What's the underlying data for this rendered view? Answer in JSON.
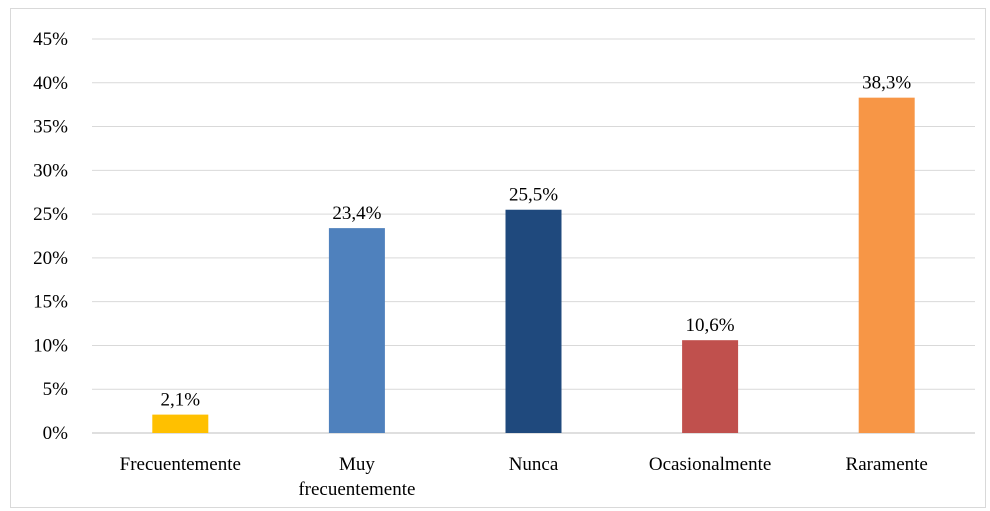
{
  "chart_data": {
    "type": "bar",
    "title": "",
    "xlabel": "",
    "ylabel": "",
    "categories": [
      "Frecuentemente",
      "Muy frecuentemente",
      "Nunca",
      "Ocasionalmente",
      "Raramente"
    ],
    "category_lines": [
      [
        "Frecuentemente"
      ],
      [
        "Muy",
        "frecuentemente"
      ],
      [
        "Nunca"
      ],
      [
        "Ocasionalmente"
      ],
      [
        "Raramente"
      ]
    ],
    "values": [
      2.1,
      23.4,
      25.5,
      10.6,
      38.3
    ],
    "data_labels": [
      "2,1%",
      "23,4%",
      "25,5%",
      "10,6%",
      "38,3%"
    ],
    "colors": [
      "#FFC000",
      "#4F81BD",
      "#1F497D",
      "#C0504D",
      "#F79646"
    ],
    "ylim": [
      0,
      45
    ],
    "yticks": [
      0,
      5,
      10,
      15,
      20,
      25,
      30,
      35,
      40,
      45
    ],
    "ytick_labels": [
      "0%",
      "5%",
      "10%",
      "15%",
      "20%",
      "25%",
      "30%",
      "35%",
      "40%",
      "45%"
    ],
    "grid": true,
    "gridline_color": "#d9d9d9",
    "axis_color": "#bfbfbf",
    "legend": "none"
  }
}
